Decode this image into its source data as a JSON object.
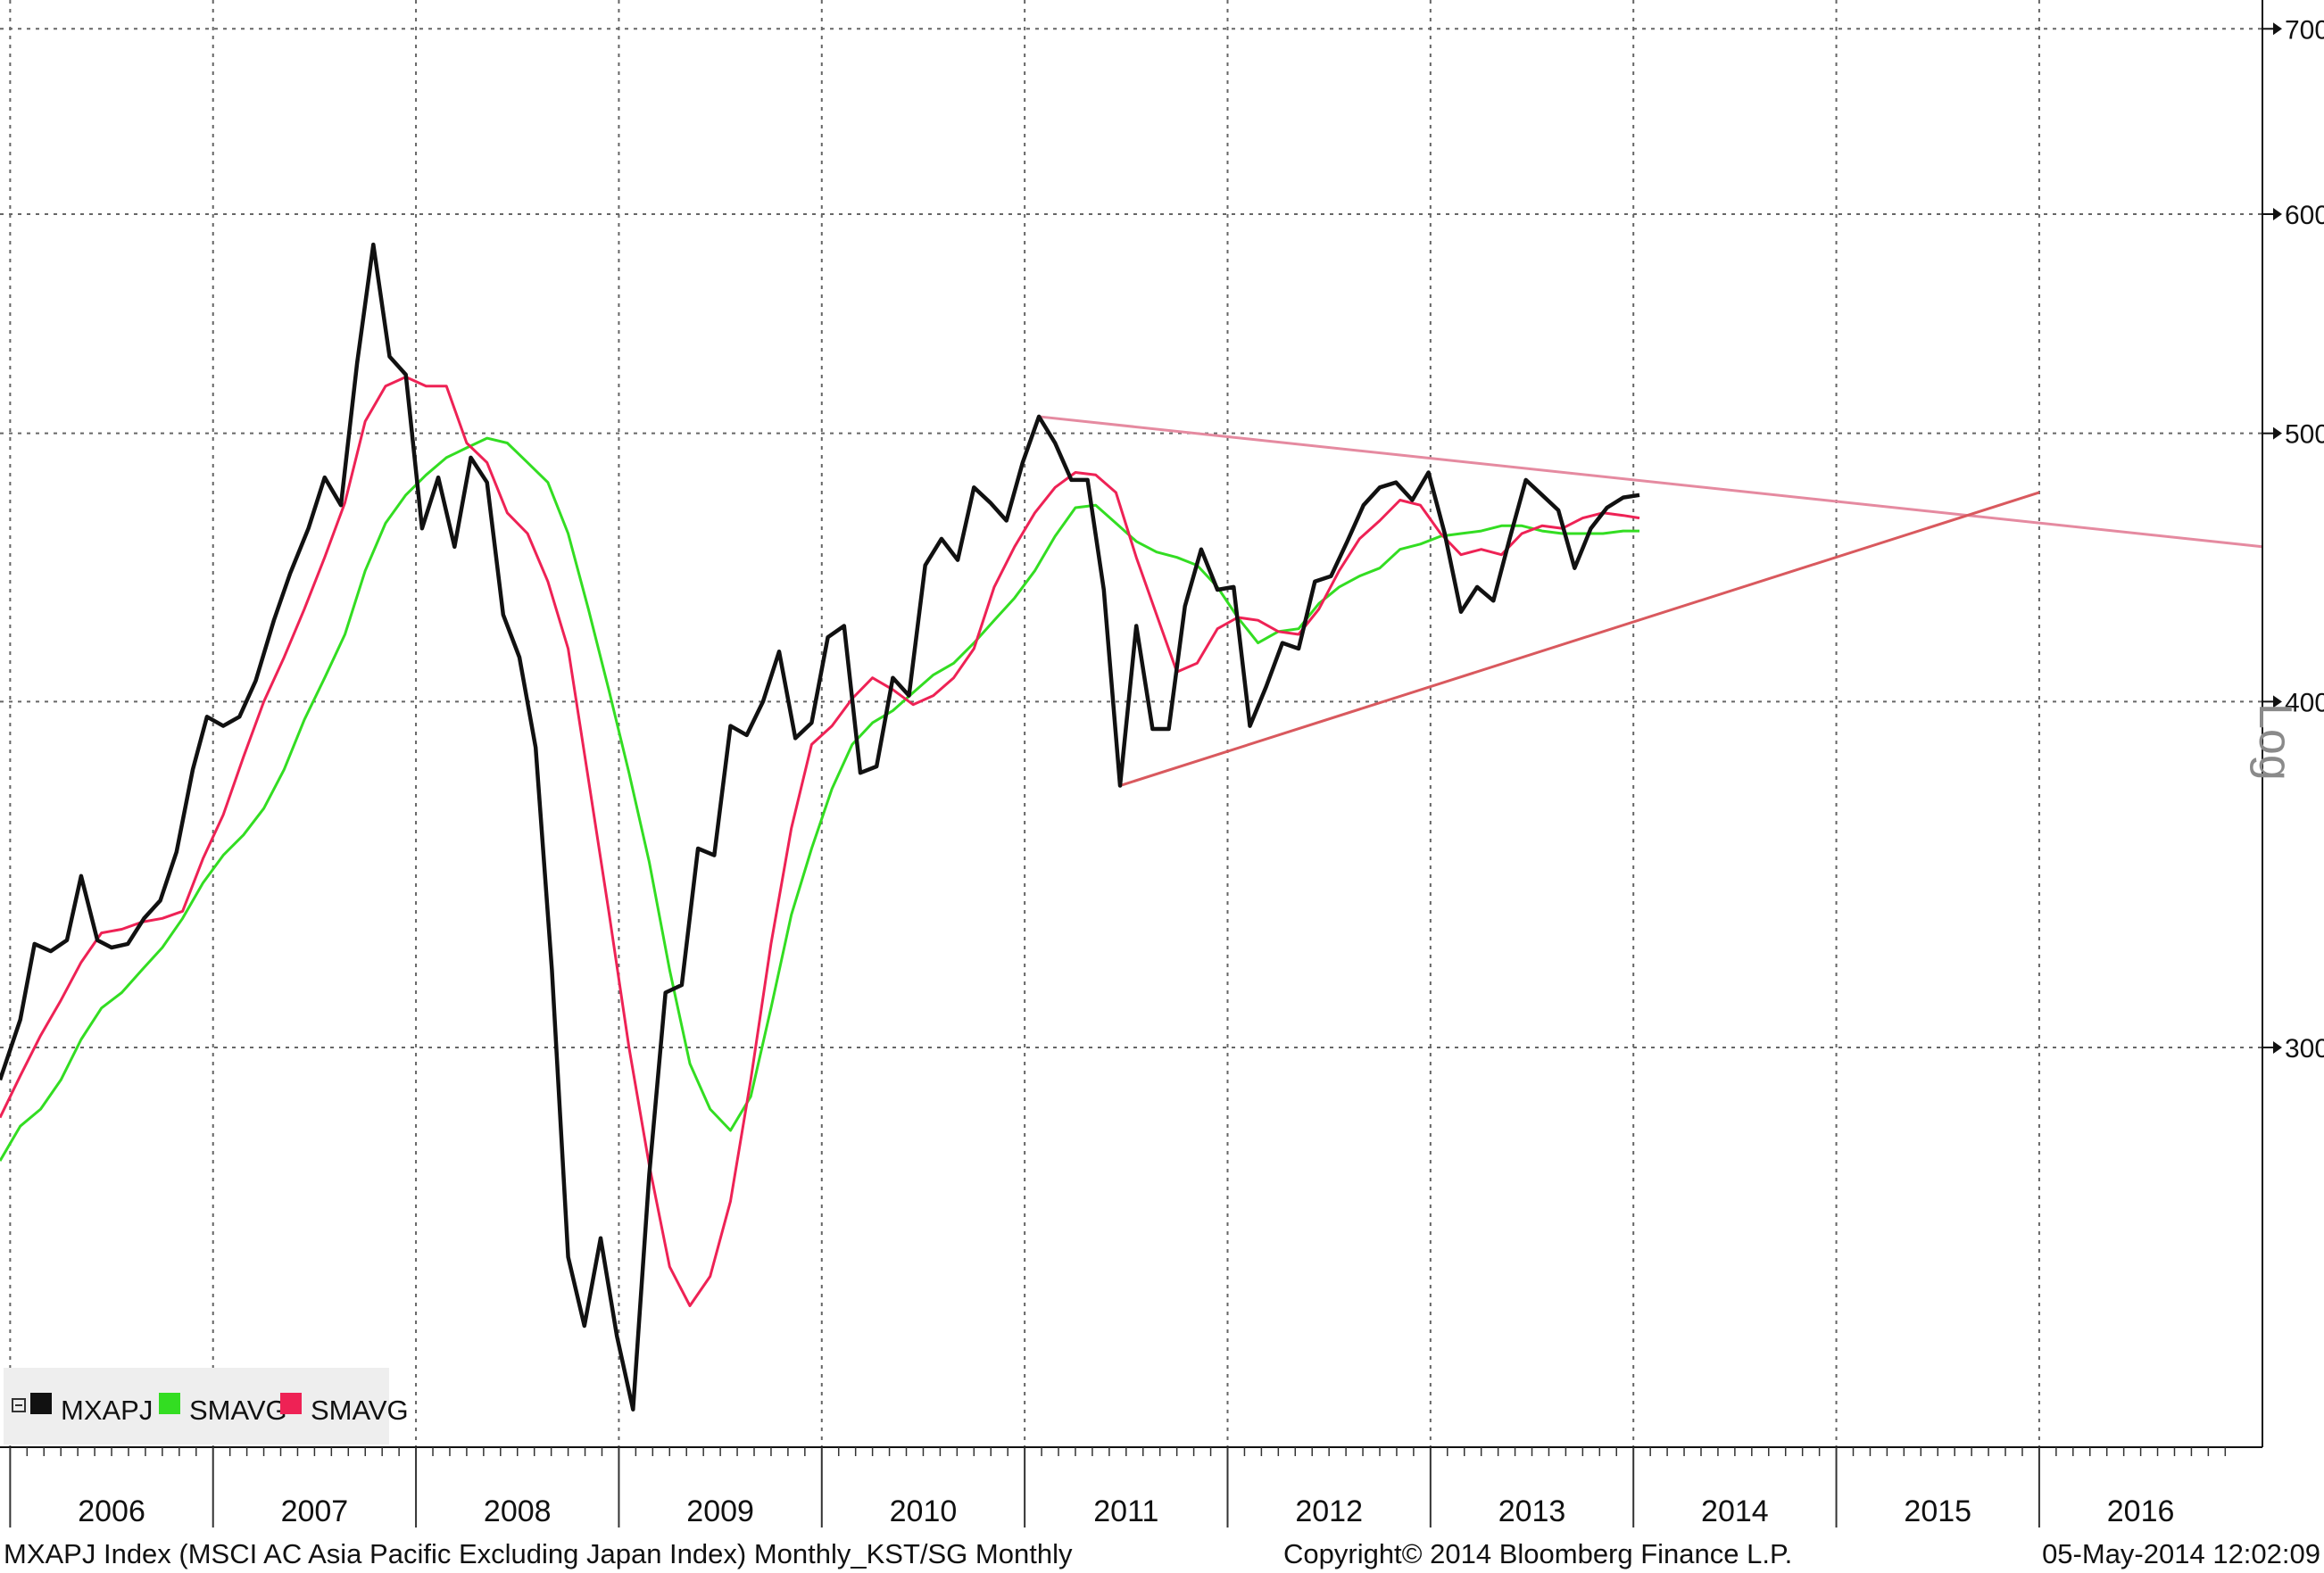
{
  "chart_data": {
    "type": "line",
    "y_scale": "log",
    "scale_label": "Log",
    "ylim": [
      240,
      700
    ],
    "y_ticks": [
      300,
      400,
      500,
      600,
      700
    ],
    "x_range": [
      2005.45,
      2016.6
    ],
    "x_tick_labels": [
      "2006",
      "2007",
      "2008",
      "2009",
      "2010",
      "2011",
      "2012",
      "2013",
      "2014",
      "2015",
      "2016"
    ],
    "grid": true,
    "legend_position": "bottom-left",
    "colors": {
      "MXAPJ": "#111111",
      "SMAVG_green": "#33dd22",
      "SMAVG_red": "#ee2255",
      "trend_upper": "#e58aa0",
      "trend_lower": "#d9595e"
    },
    "series": [
      {
        "name": "MXAPJ",
        "color": "#111111",
        "points": [
          [
            2005.45,
            292
          ],
          [
            2005.55,
            307
          ],
          [
            2005.62,
            327
          ],
          [
            2005.7,
            325
          ],
          [
            2005.78,
            328
          ],
          [
            2005.85,
            346
          ],
          [
            2005.93,
            328
          ],
          [
            2006.0,
            326
          ],
          [
            2006.08,
            327
          ],
          [
            2006.16,
            334
          ],
          [
            2006.24,
            339
          ],
          [
            2006.32,
            353
          ],
          [
            2006.4,
            378
          ],
          [
            2006.47,
            395
          ],
          [
            2006.55,
            392
          ],
          [
            2006.63,
            395
          ],
          [
            2006.71,
            407
          ],
          [
            2006.8,
            428
          ],
          [
            2006.88,
            445
          ],
          [
            2006.97,
            462
          ],
          [
            2007.05,
            482
          ],
          [
            2007.13,
            471
          ],
          [
            2007.21,
            530
          ],
          [
            2007.29,
            585
          ],
          [
            2007.37,
            533
          ],
          [
            2007.45,
            525
          ],
          [
            2007.53,
            462
          ],
          [
            2007.61,
            482
          ],
          [
            2007.69,
            455
          ],
          [
            2007.77,
            490
          ],
          [
            2007.85,
            480
          ],
          [
            2007.93,
            430
          ],
          [
            2008.01,
            415
          ],
          [
            2008.09,
            385
          ],
          [
            2008.17,
            320
          ],
          [
            2008.25,
            252
          ],
          [
            2008.33,
            238
          ],
          [
            2008.41,
            256
          ],
          [
            2008.49,
            236
          ],
          [
            2008.57,
            222
          ],
          [
            2008.65,
            270
          ],
          [
            2008.73,
            314
          ],
          [
            2008.81,
            316
          ],
          [
            2008.89,
            354
          ],
          [
            2008.97,
            352
          ],
          [
            2009.05,
            392
          ],
          [
            2009.13,
            389
          ],
          [
            2009.21,
            400
          ],
          [
            2009.29,
            417
          ],
          [
            2009.37,
            388
          ],
          [
            2009.45,
            393
          ],
          [
            2009.53,
            422
          ],
          [
            2009.61,
            426
          ],
          [
            2009.69,
            377
          ],
          [
            2009.77,
            379
          ],
          [
            2009.85,
            408
          ],
          [
            2009.93,
            402
          ],
          [
            2010.01,
            448
          ],
          [
            2010.09,
            458
          ],
          [
            2010.17,
            450
          ],
          [
            2010.25,
            478
          ],
          [
            2010.33,
            472
          ],
          [
            2010.41,
            465
          ],
          [
            2010.49,
            488
          ],
          [
            2010.57,
            507
          ],
          [
            2010.65,
            496
          ],
          [
            2010.73,
            481
          ],
          [
            2010.81,
            481
          ],
          [
            2010.89,
            439
          ],
          [
            2010.97,
            373
          ],
          [
            2011.05,
            426
          ],
          [
            2011.13,
            391
          ],
          [
            2011.21,
            391
          ],
          [
            2011.29,
            433
          ],
          [
            2011.37,
            454
          ],
          [
            2011.45,
            439
          ],
          [
            2011.53,
            440
          ],
          [
            2011.61,
            392
          ],
          [
            2011.69,
            405
          ],
          [
            2011.77,
            420
          ],
          [
            2011.85,
            418
          ],
          [
            2011.93,
            442
          ],
          [
            2012.01,
            444
          ],
          [
            2012.09,
            457
          ],
          [
            2012.17,
            471
          ],
          [
            2012.25,
            478
          ],
          [
            2012.33,
            480
          ],
          [
            2012.41,
            473
          ],
          [
            2012.49,
            484
          ],
          [
            2012.57,
            460
          ],
          [
            2012.65,
            431
          ],
          [
            2012.73,
            440
          ],
          [
            2012.81,
            435
          ],
          [
            2012.89,
            458
          ],
          [
            2012.97,
            481
          ],
          [
            2013.05,
            475
          ],
          [
            2013.13,
            469
          ],
          [
            2013.21,
            447
          ],
          [
            2013.29,
            462
          ],
          [
            2013.37,
            470
          ],
          [
            2013.45,
            474
          ],
          [
            2013.53,
            475
          ]
        ]
      },
      {
        "name": "SMAVG",
        "color": "#33dd22",
        "points": [
          [
            2005.45,
            273
          ],
          [
            2005.55,
            281
          ],
          [
            2005.65,
            285
          ],
          [
            2005.75,
            292
          ],
          [
            2005.85,
            302
          ],
          [
            2005.95,
            310
          ],
          [
            2006.05,
            314
          ],
          [
            2006.15,
            320
          ],
          [
            2006.25,
            326
          ],
          [
            2006.35,
            334
          ],
          [
            2006.45,
            344
          ],
          [
            2006.55,
            352
          ],
          [
            2006.65,
            358
          ],
          [
            2006.75,
            366
          ],
          [
            2006.85,
            378
          ],
          [
            2006.95,
            394
          ],
          [
            2007.05,
            408
          ],
          [
            2007.15,
            423
          ],
          [
            2007.25,
            446
          ],
          [
            2007.35,
            464
          ],
          [
            2007.45,
            475
          ],
          [
            2007.55,
            483
          ],
          [
            2007.65,
            490
          ],
          [
            2007.75,
            494
          ],
          [
            2007.85,
            498
          ],
          [
            2007.95,
            496
          ],
          [
            2008.05,
            488
          ],
          [
            2008.15,
            480
          ],
          [
            2008.25,
            460
          ],
          [
            2008.35,
            432
          ],
          [
            2008.45,
            404
          ],
          [
            2008.55,
            377
          ],
          [
            2008.65,
            350
          ],
          [
            2008.75,
            320
          ],
          [
            2008.85,
            296
          ],
          [
            2008.95,
            285
          ],
          [
            2009.05,
            280
          ],
          [
            2009.15,
            288
          ],
          [
            2009.25,
            310
          ],
          [
            2009.35,
            335
          ],
          [
            2009.45,
            354
          ],
          [
            2009.55,
            372
          ],
          [
            2009.65,
            386
          ],
          [
            2009.75,
            393
          ],
          [
            2009.85,
            397
          ],
          [
            2009.95,
            403
          ],
          [
            2010.05,
            409
          ],
          [
            2010.15,
            413
          ],
          [
            2010.25,
            420
          ],
          [
            2010.35,
            428
          ],
          [
            2010.45,
            436
          ],
          [
            2010.55,
            446
          ],
          [
            2010.65,
            459
          ],
          [
            2010.75,
            470
          ],
          [
            2010.85,
            471
          ],
          [
            2010.95,
            464
          ],
          [
            2011.05,
            457
          ],
          [
            2011.15,
            453
          ],
          [
            2011.25,
            451
          ],
          [
            2011.35,
            448
          ],
          [
            2011.45,
            440
          ],
          [
            2011.55,
            429
          ],
          [
            2011.65,
            420
          ],
          [
            2011.75,
            424
          ],
          [
            2011.85,
            425
          ],
          [
            2011.95,
            434
          ],
          [
            2012.05,
            440
          ],
          [
            2012.15,
            444
          ],
          [
            2012.25,
            447
          ],
          [
            2012.35,
            454
          ],
          [
            2012.45,
            456
          ],
          [
            2012.55,
            459
          ],
          [
            2012.65,
            460
          ],
          [
            2012.75,
            461
          ],
          [
            2012.85,
            463
          ],
          [
            2012.95,
            463
          ],
          [
            2013.05,
            461
          ],
          [
            2013.15,
            460
          ],
          [
            2013.25,
            460
          ],
          [
            2013.35,
            460
          ],
          [
            2013.45,
            461
          ],
          [
            2013.53,
            461
          ]
        ]
      },
      {
        "name": "SMAVG",
        "color": "#ee2255",
        "points": [
          [
            2005.45,
            283
          ],
          [
            2005.55,
            293
          ],
          [
            2005.65,
            303
          ],
          [
            2005.75,
            312
          ],
          [
            2005.85,
            322
          ],
          [
            2005.95,
            330
          ],
          [
            2006.05,
            331
          ],
          [
            2006.15,
            333
          ],
          [
            2006.25,
            334
          ],
          [
            2006.35,
            336
          ],
          [
            2006.45,
            351
          ],
          [
            2006.55,
            364
          ],
          [
            2006.65,
            382
          ],
          [
            2006.75,
            400
          ],
          [
            2006.85,
            415
          ],
          [
            2006.95,
            432
          ],
          [
            2007.05,
            451
          ],
          [
            2007.15,
            472
          ],
          [
            2007.25,
            505
          ],
          [
            2007.35,
            520
          ],
          [
            2007.45,
            524
          ],
          [
            2007.55,
            520
          ],
          [
            2007.65,
            520
          ],
          [
            2007.75,
            496
          ],
          [
            2007.85,
            488
          ],
          [
            2007.95,
            468
          ],
          [
            2008.05,
            460
          ],
          [
            2008.15,
            442
          ],
          [
            2008.25,
            418
          ],
          [
            2008.35,
            375
          ],
          [
            2008.45,
            336
          ],
          [
            2008.55,
            300
          ],
          [
            2008.65,
            272
          ],
          [
            2008.75,
            250
          ],
          [
            2008.85,
            242
          ],
          [
            2008.95,
            248
          ],
          [
            2009.05,
            264
          ],
          [
            2009.15,
            292
          ],
          [
            2009.25,
            327
          ],
          [
            2009.35,
            360
          ],
          [
            2009.45,
            386
          ],
          [
            2009.55,
            392
          ],
          [
            2009.65,
            401
          ],
          [
            2009.75,
            408
          ],
          [
            2009.85,
            404
          ],
          [
            2009.95,
            399
          ],
          [
            2010.05,
            402
          ],
          [
            2010.15,
            408
          ],
          [
            2010.25,
            418
          ],
          [
            2010.35,
            440
          ],
          [
            2010.45,
            455
          ],
          [
            2010.55,
            468
          ],
          [
            2010.65,
            478
          ],
          [
            2010.75,
            484
          ],
          [
            2010.85,
            483
          ],
          [
            2010.95,
            476
          ],
          [
            2011.05,
            451
          ],
          [
            2011.15,
            430
          ],
          [
            2011.25,
            410
          ],
          [
            2011.35,
            413
          ],
          [
            2011.45,
            425
          ],
          [
            2011.55,
            429
          ],
          [
            2011.65,
            428
          ],
          [
            2011.75,
            424
          ],
          [
            2011.85,
            423
          ],
          [
            2011.95,
            432
          ],
          [
            2012.05,
            446
          ],
          [
            2012.15,
            458
          ],
          [
            2012.25,
            465
          ],
          [
            2012.35,
            473
          ],
          [
            2012.45,
            471
          ],
          [
            2012.55,
            460
          ],
          [
            2012.65,
            452
          ],
          [
            2012.75,
            454
          ],
          [
            2012.85,
            452
          ],
          [
            2012.95,
            460
          ],
          [
            2013.05,
            463
          ],
          [
            2013.15,
            462
          ],
          [
            2013.25,
            466
          ],
          [
            2013.35,
            468
          ],
          [
            2013.45,
            467
          ],
          [
            2013.53,
            466
          ]
        ]
      }
    ],
    "trendlines": [
      {
        "color": "#e58aa0",
        "from": [
          2010.57,
          507
        ],
        "to": [
          2016.6,
          455
        ]
      },
      {
        "color": "#d9595e",
        "from": [
          2010.97,
          373
        ],
        "to": [
          2015.5,
          476
        ]
      }
    ],
    "legend": [
      {
        "label": "MXAPJ",
        "color": "#111111"
      },
      {
        "label": "SMAVG",
        "color": "#33dd22"
      },
      {
        "label": "SMAVG",
        "color": "#ee2255"
      }
    ]
  },
  "footer": {
    "description": "MXAPJ Index (MSCI AC Asia Pacific Excluding Japan Index) Monthly_KST/SG  Monthly",
    "copyright": "Copyright© 2014 Bloomberg Finance L.P.",
    "timestamp": "05-May-2014 12:02:09"
  }
}
